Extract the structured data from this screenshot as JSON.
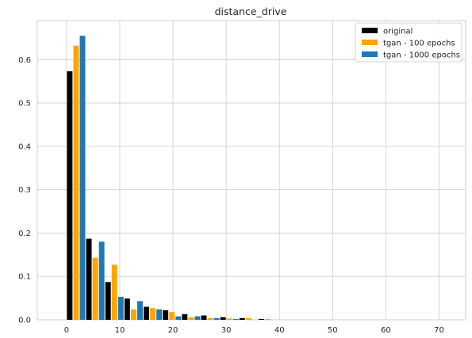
{
  "chart_data": {
    "type": "bar",
    "title": "distance_drive",
    "xlabel": "",
    "ylabel": "",
    "xlim": [
      -5.5,
      75
    ],
    "ylim": [
      0,
      0.69
    ],
    "x_ticks": [
      0,
      10,
      20,
      30,
      40,
      50,
      60,
      70
    ],
    "y_ticks": [
      0.0,
      0.1,
      0.2,
      0.3,
      0.4,
      0.5,
      0.6
    ],
    "grid": true,
    "legend_position": "top-right",
    "bin_width": 3.6,
    "x": [
      0.0,
      3.6,
      7.2,
      10.8,
      14.4,
      18.0,
      21.6,
      25.2,
      28.8,
      32.4,
      36.0
    ],
    "series": [
      {
        "name": "original",
        "color": "#000000",
        "values": [
          0.573,
          0.187,
          0.087,
          0.049,
          0.03,
          0.022,
          0.013,
          0.01,
          0.006,
          0.004,
          0.002
        ]
      },
      {
        "name": "tgan - 100 epochs",
        "color": "#ffa500",
        "values": [
          0.632,
          0.143,
          0.127,
          0.024,
          0.027,
          0.018,
          0.006,
          0.004,
          0.003,
          0.004,
          0.002
        ]
      },
      {
        "name": "tgan - 1000 epochs",
        "color": "#1f77b4",
        "values": [
          0.655,
          0.18,
          0.053,
          0.043,
          0.024,
          0.008,
          0.008,
          0.004,
          0.002,
          0.0,
          0.0
        ]
      }
    ]
  }
}
